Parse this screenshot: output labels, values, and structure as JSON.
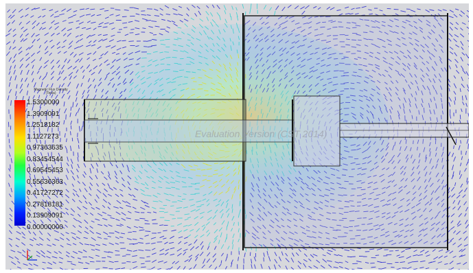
{
  "legend": {
    "title_line1": "Magnetic Flux Density",
    "title_line2": "(Tesla)",
    "values": [
      "1.5300000",
      "1.3909091",
      "1.2518182",
      "1.1127273",
      "0.97363635",
      "0.83454544",
      "0.69545453",
      "0.55636363",
      "0.41727272",
      "0.27818181",
      "0.13909091",
      "0.00000000"
    ]
  },
  "watermark": "Evaluation Version (CST 2014)",
  "colors": {
    "background": "#d7d8dc",
    "arrow_low": "#2020d0",
    "arrow_mid": "#30d0d0",
    "arrow_high": "#e0e020",
    "outline": "#222222"
  },
  "icons": {
    "triad": "axis-triad-icon"
  }
}
